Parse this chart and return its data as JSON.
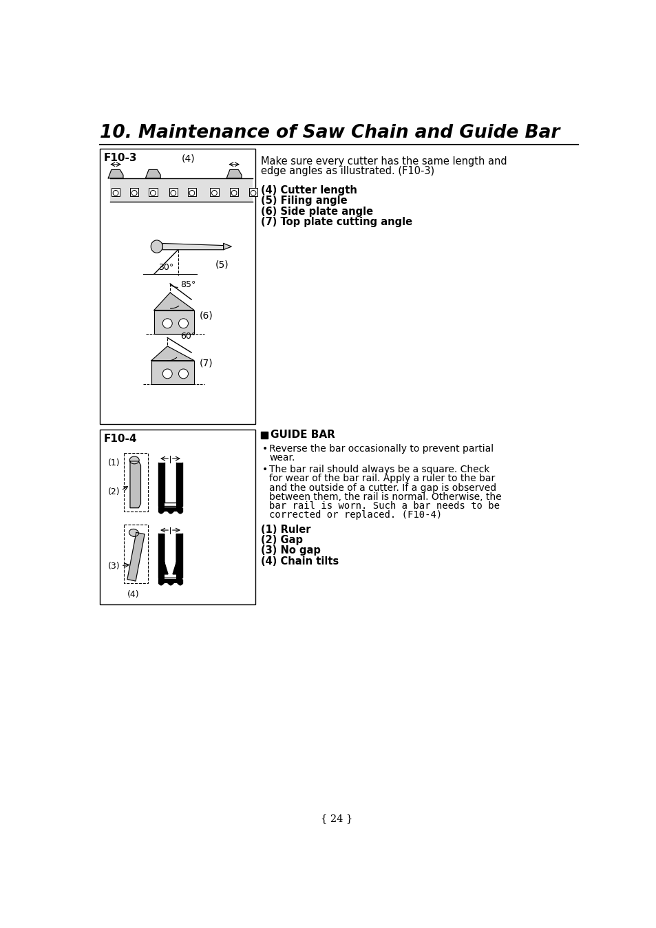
{
  "page_title": "10. Maintenance of Saw Chain and Guide Bar",
  "page_number": "{ 24 }",
  "background_color": "#ffffff",
  "text_color": "#000000",
  "fig_width": 9.54,
  "fig_height": 13.48,
  "dpi": 100,
  "f103_label": "F10-3",
  "f104_label": "F10-4",
  "right_text_top_line1": "Make sure every cutter has the same length and",
  "right_text_top_line2": "edge angles as illustrated. (F10-3)",
  "right_list_top": [
    "(4) Cutter length",
    "(5) Filing angle",
    "(6) Side plate angle",
    "(7) Top plate cutting angle"
  ],
  "guide_bar_title": "GUIDE BAR",
  "bullet1_lines": [
    "Reverse the bar occasionally to prevent partial",
    "wear."
  ],
  "bullet2_lines": [
    "The bar rail should always be a square. Check",
    "for wear of the bar rail. Apply a ruler to the bar",
    "and the outside of a cutter. If a gap is observed",
    "between them, the rail is normal. Otherwise, the",
    "bar rail is worn. Such a bar needs to be",
    "corrected or replaced. (F10-4)"
  ],
  "right_list_bottom": [
    "(1) Ruler",
    "(2) Gap",
    "(3) No gap",
    "(4) Chain tilts"
  ]
}
